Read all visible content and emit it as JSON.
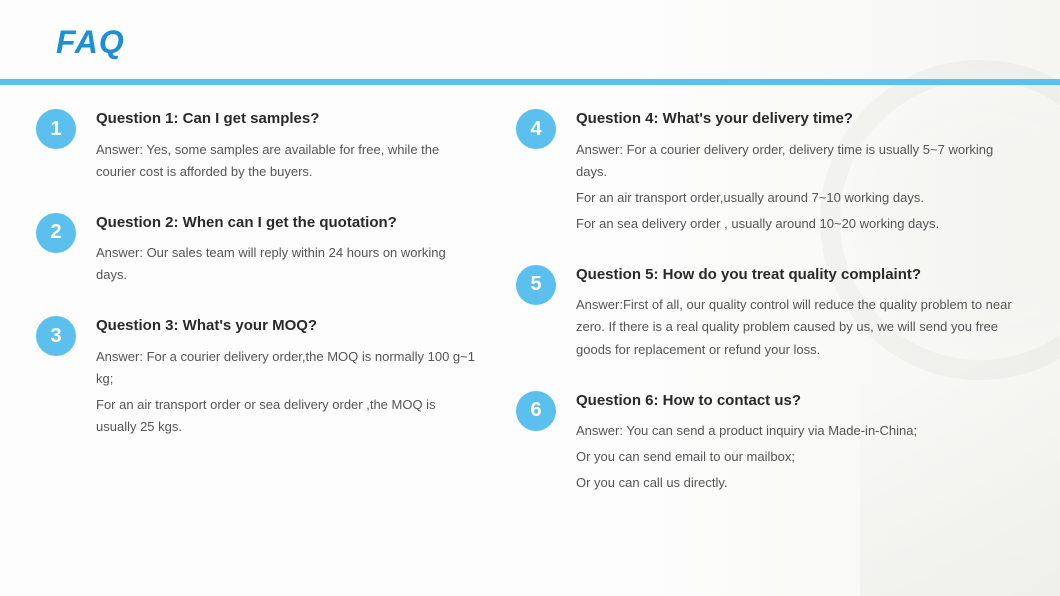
{
  "title": "FAQ",
  "colors": {
    "title_color": "#1c8fd6",
    "divider_color": "#5cc0ef",
    "badge_bg": "#5cc0ef",
    "question_color": "#2a2a2a",
    "answer_color": "#555555"
  },
  "left": [
    {
      "num": "1",
      "question": "Question 1: Can I get samples?",
      "answers": [
        "Answer: Yes, some samples are available for free, while the courier cost is afforded by the buyers."
      ]
    },
    {
      "num": "2",
      "question": "Question 2: When can I get the quotation?",
      "answers": [
        "Answer: Our sales team will reply within 24 hours on working days."
      ]
    },
    {
      "num": "3",
      "question": "Question 3: What's your MOQ?",
      "answers": [
        "Answer: For a courier delivery order,the MOQ is normally 100 g~1 kg;",
        "For an air transport order or sea delivery order ,the MOQ is usually 25 kgs."
      ]
    }
  ],
  "right": [
    {
      "num": "4",
      "question": "Question 4: What's your delivery time?",
      "answers": [
        "Answer: For a courier delivery order, delivery time is usually 5~7 working days.",
        "For an air transport order,usually around 7~10 working days.",
        "For an sea delivery order , usually around 10~20 working days."
      ]
    },
    {
      "num": "5",
      "question": "Question 5: How do you treat quality complaint?",
      "answers": [
        "Answer:First of all, our quality control will reduce the quality problem to near zero. If there is a real quality problem caused by us, we will send you free goods for replacement or refund your loss."
      ]
    },
    {
      "num": "6",
      "question": "Question 6: How to contact us?",
      "answers": [
        "Answer: You can send a product inquiry via Made-in-China;",
        "Or you can send email to our mailbox;",
        "Or you can call us directly."
      ]
    }
  ]
}
